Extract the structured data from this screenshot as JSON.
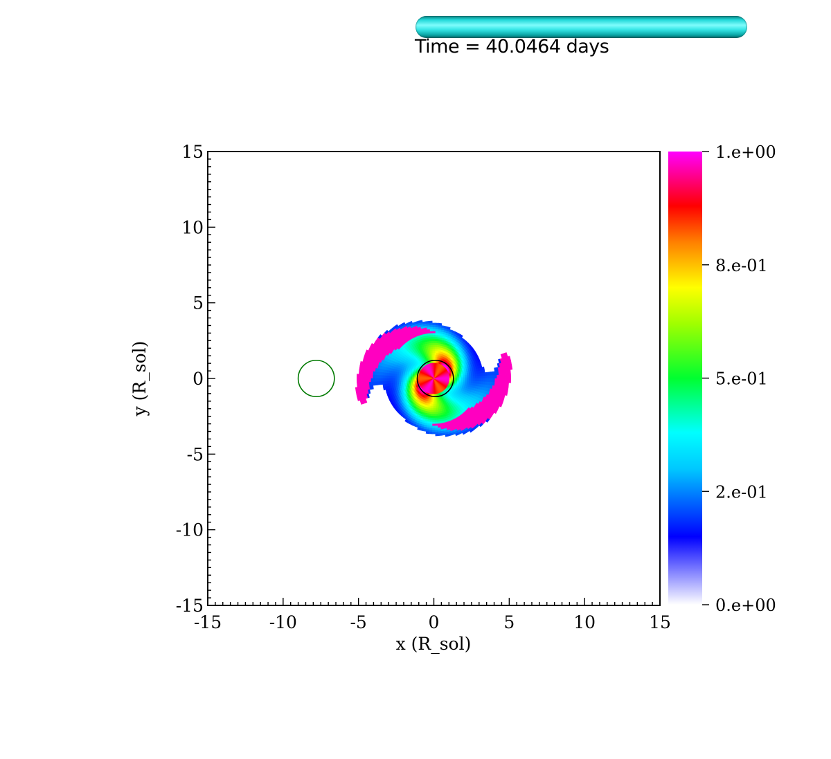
{
  "time_indicator": {
    "label": "Time = 40.0464 days",
    "bar_color": "#22e0e0"
  },
  "chart_data": {
    "type": "heatmap",
    "xlabel": "x (R_sol)",
    "ylabel": "y (R_sol)",
    "xlim": [
      -15,
      15
    ],
    "ylim": [
      -15,
      15
    ],
    "x_ticks": [
      {
        "value": -15,
        "label": "-15"
      },
      {
        "value": -10,
        "label": "-10"
      },
      {
        "value": -5,
        "label": "-5"
      },
      {
        "value": 0,
        "label": "0"
      },
      {
        "value": 5,
        "label": "5"
      },
      {
        "value": 10,
        "label": "10"
      },
      {
        "value": 15,
        "label": "15"
      }
    ],
    "y_ticks": [
      {
        "value": 15,
        "label": "15"
      },
      {
        "value": 10,
        "label": "10"
      },
      {
        "value": 5,
        "label": "5"
      },
      {
        "value": 0,
        "label": "0"
      },
      {
        "value": -5,
        "label": "-5"
      },
      {
        "value": -10,
        "label": "-10"
      },
      {
        "value": -15,
        "label": "-15"
      }
    ],
    "grid": false,
    "colorbar": {
      "min": 0,
      "max": 1,
      "position": "right",
      "ticks": [
        {
          "value": 1.0,
          "label": "1.e+00"
        },
        {
          "value": 0.75,
          "label": "8.e-01"
        },
        {
          "value": 0.5,
          "label": "5.e-01"
        },
        {
          "value": 0.25,
          "label": "2.e-01"
        },
        {
          "value": 0.0,
          "label": "0.e+00"
        }
      ],
      "stops": [
        {
          "value": 0.0,
          "color": "#ffffff"
        },
        {
          "value": 0.15,
          "color": "#0000ff"
        },
        {
          "value": 0.3,
          "color": "#00c8ff"
        },
        {
          "value": 0.38,
          "color": "#00ffff"
        },
        {
          "value": 0.5,
          "color": "#00ff30"
        },
        {
          "value": 0.62,
          "color": "#a0ff00"
        },
        {
          "value": 0.7,
          "color": "#ffff00"
        },
        {
          "value": 0.8,
          "color": "#ff8000"
        },
        {
          "value": 0.88,
          "color": "#ff0000"
        },
        {
          "value": 0.94,
          "color": "#ff0080"
        },
        {
          "value": 1.0,
          "color": "#ff00ff"
        }
      ]
    },
    "companion_circle": {
      "cx": -7.8,
      "cy": 0.0,
      "r": 1.2,
      "color": "#007a00"
    },
    "primary_circle": {
      "cx": 0.1,
      "cy": 0.0,
      "r": 1.2,
      "color": "#000000"
    },
    "distribution": {
      "center": [
        0.0,
        0.0
      ],
      "core_radius": 1.0,
      "outer_radius": 5.5,
      "spiral_arms": 2
    }
  }
}
